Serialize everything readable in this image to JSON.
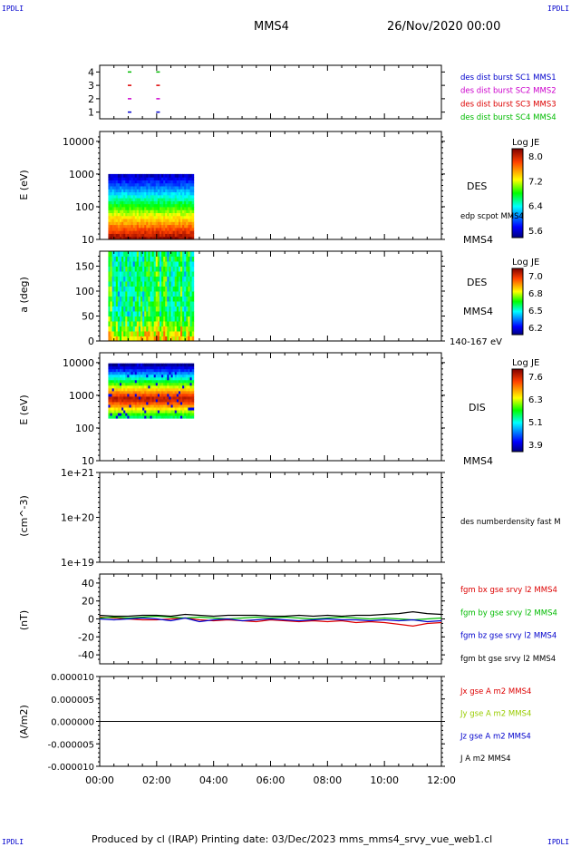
{
  "corner_labels": {
    "top_left": "IPDLI",
    "top_right": "IPDLI",
    "bottom_left": "IPDLI",
    "bottom_right": "IPDLI"
  },
  "header": {
    "spacecraft": "MMS4",
    "date_time": "26/Nov/2020 00:00"
  },
  "footer": {
    "text": "Produced by cl (IRAP)   Printing date: 03/Dec/2023   mms_mms4_srvy_vue_web1.cl"
  },
  "x_axis": {
    "ticks": [
      "00:00",
      "02:00",
      "04:00",
      "06:00",
      "08:00",
      "10:00",
      "12:00"
    ]
  },
  "colors": {
    "mms1": "#0000cc",
    "mms2": "#cc00cc",
    "mms3": "#dd0000",
    "mms4": "#00bb00",
    "bx": "#dd0000",
    "by": "#00bb00",
    "bz": "#0000cc",
    "bt": "#000000"
  },
  "chart_data": [
    {
      "type": "scatter",
      "panel": "burst",
      "y_ticks": [
        "4",
        "3",
        "2",
        "1"
      ],
      "ylim": [
        0.5,
        4.5
      ],
      "xlim": [
        0,
        12
      ],
      "series": [
        {
          "name": "des dist burst SC1 MMS1",
          "color": "#0000cc",
          "y": 1,
          "x": [
            1.05,
            2.05
          ]
        },
        {
          "name": "des dist burst SC2 MMS2",
          "color": "#cc00cc",
          "y": 2,
          "x": [
            1.05,
            2.05
          ]
        },
        {
          "name": "des dist burst SC3 MMS3",
          "color": "#dd0000",
          "y": 3,
          "x": [
            1.05,
            2.05
          ]
        },
        {
          "name": "des dist burst SC4 MMS4",
          "color": "#00bb00",
          "y": 4,
          "x": [
            1.05,
            2.05
          ]
        }
      ]
    },
    {
      "type": "heatmap",
      "panel": "des_energy",
      "ylabel": "E (eV)",
      "y_ticks": [
        "10000",
        "1000",
        "100",
        "10"
      ],
      "y_scale": "log",
      "ylim": [
        10,
        20000
      ],
      "xlim": [
        0,
        12
      ],
      "data_coverage_hours": [
        0.3,
        3.3
      ],
      "colorbar": {
        "title": "Log JE",
        "ticks": [
          "8.0",
          "7.2",
          "6.4",
          "5.6"
        ]
      },
      "right_labels": [
        "DES",
        "edp scpot MMS4",
        "MMS4"
      ]
    },
    {
      "type": "heatmap",
      "panel": "des_pitch",
      "ylabel": "a (deg)",
      "y_ticks": [
        "150",
        "100",
        "50",
        "0"
      ],
      "ylim": [
        0,
        180
      ],
      "xlim": [
        0,
        12
      ],
      "data_coverage_hours": [
        0.3,
        3.3
      ],
      "colorbar": {
        "title": "Log JE",
        "ticks": [
          "7.0",
          "6.8",
          "6.5",
          "6.2"
        ]
      },
      "right_labels": [
        "DES",
        "MMS4",
        "140-167 eV"
      ]
    },
    {
      "type": "heatmap",
      "panel": "dis_energy",
      "ylabel": "E (eV)",
      "y_ticks": [
        "10000",
        "1000",
        "100",
        "10"
      ],
      "y_scale": "log",
      "ylim": [
        10,
        20000
      ],
      "xlim": [
        0,
        12
      ],
      "data_coverage_hours": [
        0.3,
        3.3
      ],
      "colorbar": {
        "title": "Log JE",
        "ticks": [
          "7.6",
          "6.3",
          "5.1",
          "3.9"
        ]
      },
      "right_labels": [
        "DIS",
        "MMS4"
      ]
    },
    {
      "type": "line",
      "panel": "density",
      "ylabel": "(cm^-3)",
      "y_ticks": [
        "1e+21",
        "1e+20",
        "1e+19"
      ],
      "y_scale": "log",
      "xlim": [
        0,
        12
      ],
      "series": [
        {
          "name": "des numberdensity fast M",
          "color": "#000000",
          "x": [],
          "y": []
        }
      ]
    },
    {
      "type": "line",
      "panel": "fgm",
      "ylabel": "(nT)",
      "y_ticks": [
        "40",
        "20",
        "0",
        "-20",
        "-40"
      ],
      "ylim": [
        -50,
        50
      ],
      "xlim": [
        0,
        12
      ],
      "series": [
        {
          "name": "fgm bx gse srvy l2 MMS4",
          "color": "#dd0000",
          "x": [
            0,
            0.5,
            1,
            1.5,
            2,
            2.5,
            3,
            3.5,
            4,
            4.5,
            5,
            5.5,
            6,
            6.5,
            7,
            7.5,
            8,
            8.5,
            9,
            9.5,
            10,
            10.5,
            11,
            11.5,
            12
          ],
          "y": [
            2,
            1,
            0,
            -1,
            -1,
            0,
            1,
            -1,
            -2,
            -1,
            -2,
            -3,
            -1,
            -2,
            -3,
            -2,
            -3,
            -2,
            -4,
            -3,
            -4,
            -6,
            -8,
            -5,
            -4
          ]
        },
        {
          "name": "fgm by gse srvy l2 MMS4",
          "color": "#00bb00",
          "x": [
            0,
            0.5,
            1,
            1.5,
            2,
            2.5,
            3,
            3.5,
            4,
            4.5,
            5,
            5.5,
            6,
            6.5,
            7,
            7.5,
            8,
            8.5,
            9,
            9.5,
            10,
            10.5,
            11,
            11.5,
            12
          ],
          "y": [
            1,
            2,
            1,
            2,
            3,
            2,
            1,
            2,
            1,
            0,
            1,
            2,
            1,
            2,
            1,
            0,
            1,
            2,
            1,
            0,
            1,
            0,
            -1,
            0,
            1
          ]
        },
        {
          "name": "fgm bz gse srvy l2 MMS4",
          "color": "#0000cc",
          "x": [
            0,
            0.5,
            1,
            1.5,
            2,
            2.5,
            3,
            3.5,
            4,
            4.5,
            5,
            5.5,
            6,
            6.5,
            7,
            7.5,
            8,
            8.5,
            9,
            9.5,
            10,
            10.5,
            11,
            11.5,
            12
          ],
          "y": [
            0,
            -1,
            0,
            1,
            0,
            -2,
            1,
            -3,
            -1,
            0,
            -2,
            -1,
            0,
            -1,
            -2,
            -1,
            0,
            -1,
            -1,
            -2,
            -1,
            -2,
            -1,
            -3,
            -2
          ]
        },
        {
          "name": "fgm bt gse srvy l2 MMS4",
          "color": "#000000",
          "x": [
            0,
            0.5,
            1,
            1.5,
            2,
            2.5,
            3,
            3.5,
            4,
            4.5,
            5,
            5.5,
            6,
            6.5,
            7,
            7.5,
            8,
            8.5,
            9,
            9.5,
            10,
            10.5,
            11,
            11.5,
            12
          ],
          "y": [
            4,
            3,
            3,
            4,
            4,
            3,
            5,
            4,
            3,
            4,
            4,
            4,
            3,
            3,
            4,
            3,
            4,
            3,
            4,
            4,
            5,
            6,
            8,
            6,
            5
          ]
        }
      ]
    },
    {
      "type": "line",
      "panel": "current",
      "ylabel": "(A/m2)",
      "y_ticks": [
        "0.000010",
        "0.000005",
        "0.000000",
        "-0.000005",
        "-0.000010"
      ],
      "ylim": [
        -1e-05,
        1e-05
      ],
      "xlim": [
        0,
        12
      ],
      "series": [
        {
          "name": "Jx gse A m2 MMS4",
          "color": "#dd0000",
          "x": [
            0,
            12
          ],
          "y": [
            0,
            0
          ]
        },
        {
          "name": "Jy gse A m2 MMS4",
          "color": "#99cc00",
          "x": [
            0,
            12
          ],
          "y": [
            0,
            0
          ]
        },
        {
          "name": "Jz gse A m2 MMS4",
          "color": "#0000cc",
          "x": [
            0,
            12
          ],
          "y": [
            0,
            0
          ]
        },
        {
          "name": "J A m2 MMS4",
          "color": "#000000",
          "x": [
            0,
            12
          ],
          "y": [
            0,
            0
          ]
        }
      ]
    }
  ]
}
